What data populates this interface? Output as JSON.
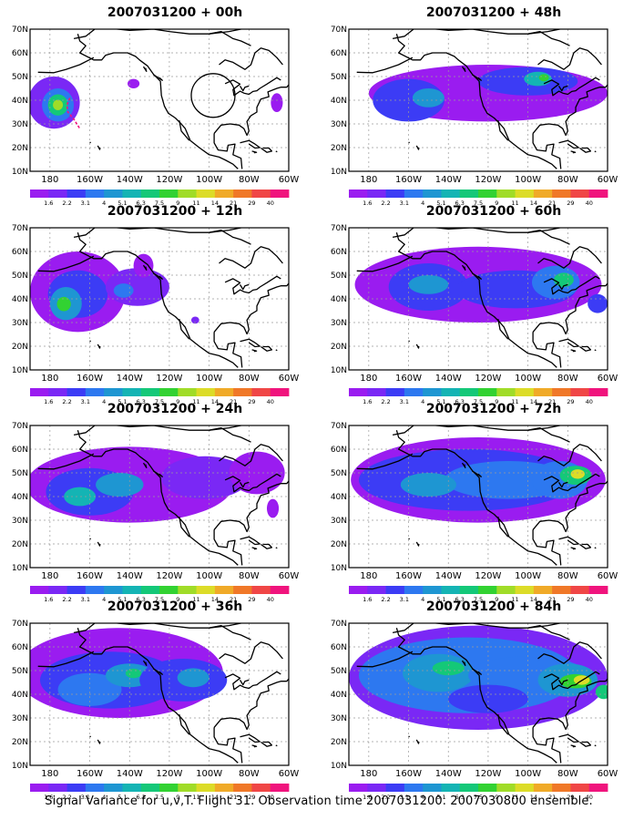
{
  "panels": [
    {
      "title": "2007031200 + 00h"
    },
    {
      "title": "2007031200 + 48h"
    },
    {
      "title": "2007031200 + 12h"
    },
    {
      "title": "2007031200 + 60h"
    },
    {
      "title": "2007031200 + 24h"
    },
    {
      "title": "2007031200 + 72h"
    },
    {
      "title": "2007031200 + 36h"
    },
    {
      "title": "2007031200 + 84h"
    }
  ],
  "axes": {
    "lat_labels": [
      "70N",
      "60N",
      "50N",
      "40N",
      "30N",
      "20N",
      "10N"
    ],
    "lon_labels": [
      "180",
      "160W",
      "140W",
      "120W",
      "100W",
      "80W",
      "60W"
    ]
  },
  "colorbar": {
    "labels": [
      "1.6",
      "2.2",
      "3.1",
      "4",
      "5.1",
      "6.3",
      "7.5",
      "9",
      "11",
      "14",
      "21",
      "29",
      "40"
    ],
    "colors": [
      "#9a1cf0",
      "#7a28f5",
      "#3c3cf5",
      "#2d78f0",
      "#1e96d2",
      "#14b4b4",
      "#14c878",
      "#32d232",
      "#a0dc28",
      "#dcdc28",
      "#f0aa28",
      "#f07828",
      "#f04646",
      "#f0147d"
    ]
  },
  "footer": "Signal Variance for u,v,T. Flight 31. Observation time 2007031200. 2007030800 ensemble."
}
